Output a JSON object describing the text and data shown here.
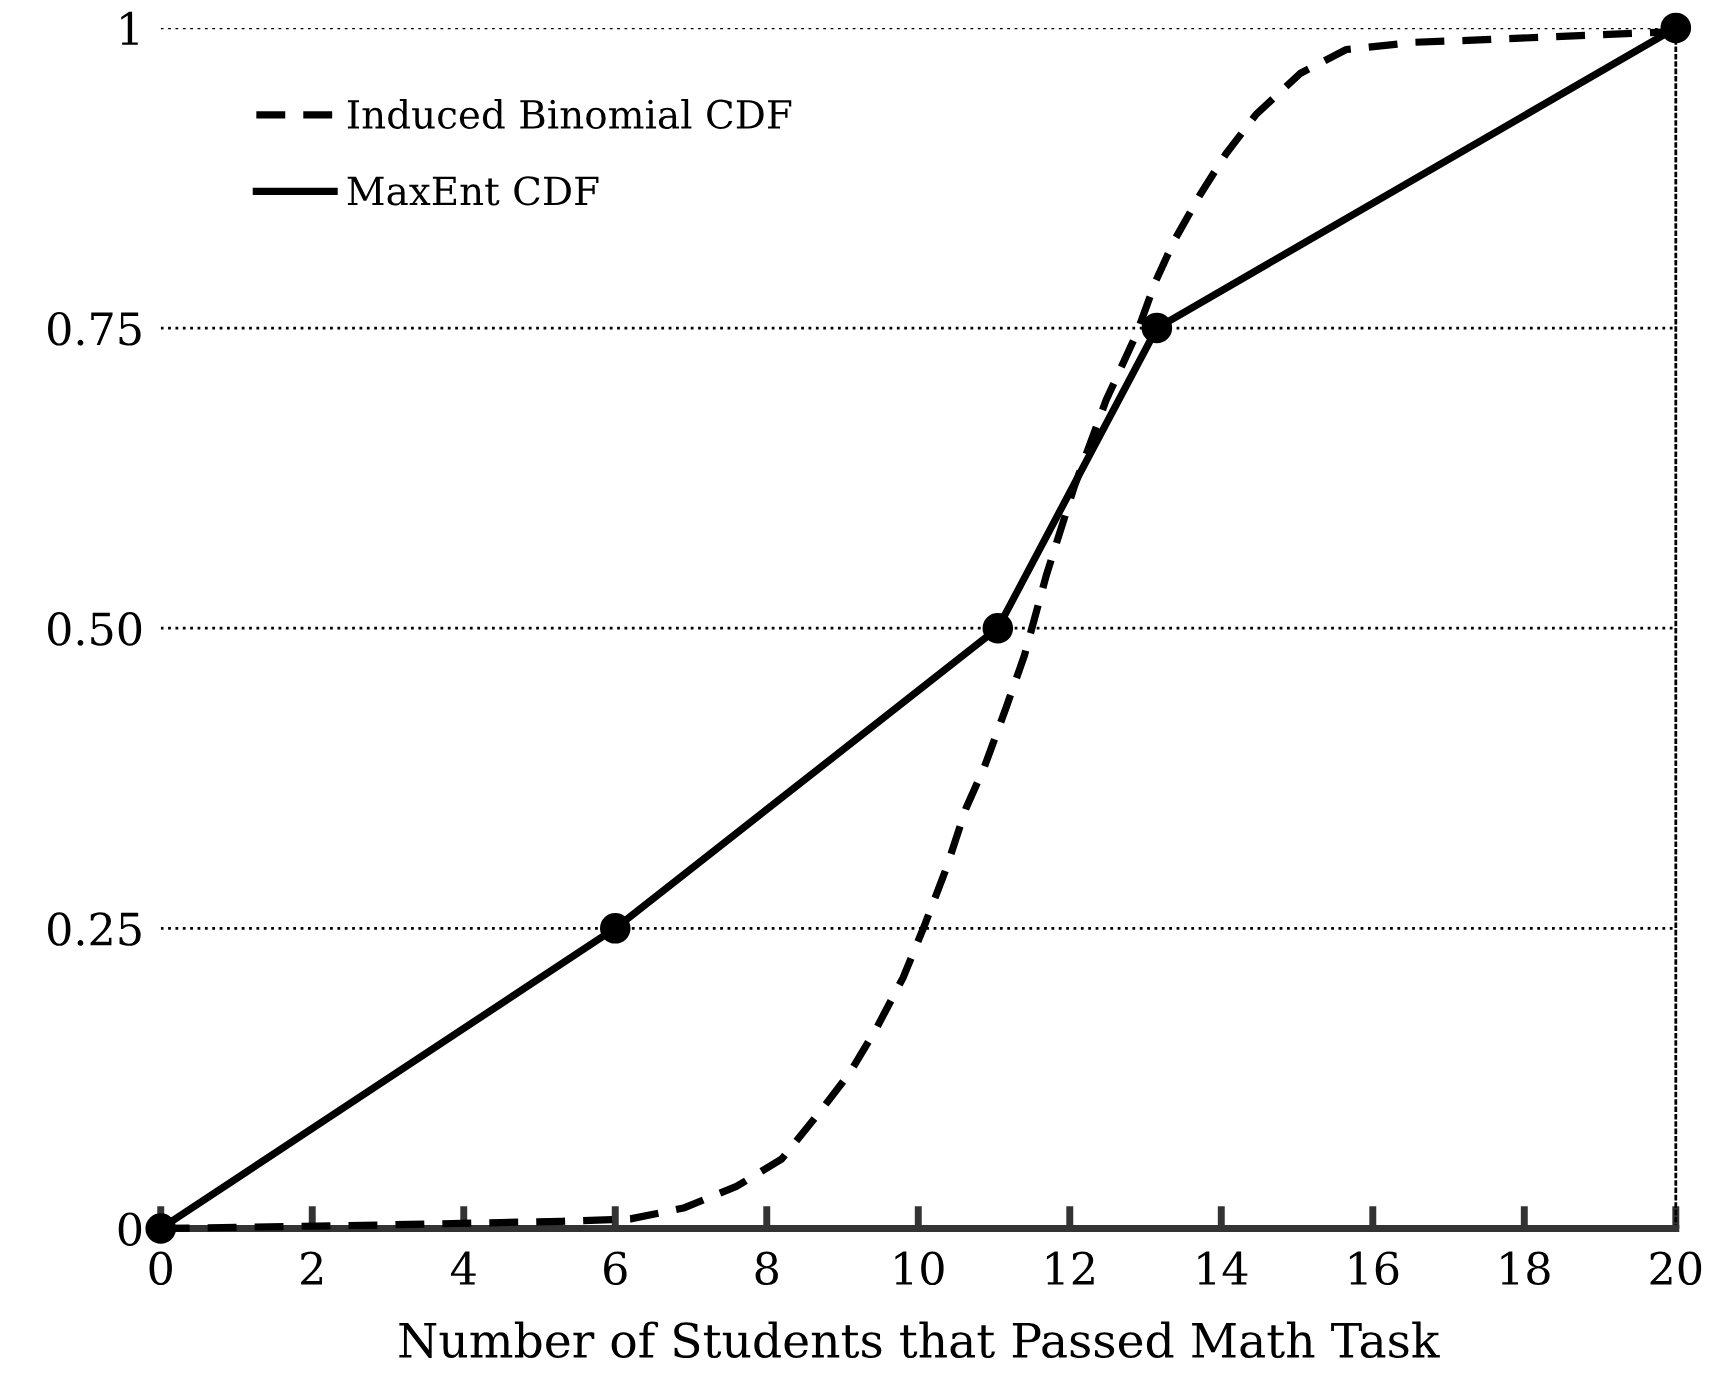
{
  "chart_data": {
    "type": "line",
    "xlabel": "Number of Students that Passed Math Task",
    "xlim": [
      0,
      20
    ],
    "xticks": [
      0,
      2,
      4,
      6,
      8,
      10,
      12,
      14,
      16,
      18,
      20
    ],
    "ylim": [
      0,
      1
    ],
    "yticks": [
      0,
      0.25,
      {
        "value": 0.5,
        "label": "0.50"
      },
      0.75,
      1
    ],
    "grid": "y",
    "legend": "top left",
    "series": [
      {
        "name": "Induced Binomial CDF",
        "color": "#000000",
        "line_style": "dashed",
        "marker": "none",
        "x": [
          0,
          3,
          5.3,
          6.2,
          6.9,
          7.6,
          8.2,
          8.7,
          9.1,
          9.45,
          9.8,
          10.08,
          10.37,
          10.63,
          10.87,
          11.16,
          11.4,
          11.69,
          12.06,
          12.48,
          12.88,
          13.14,
          13.38,
          13.72,
          14.06,
          14.46,
          15.04,
          15.65,
          16.54,
          17.4,
          20
        ],
        "values": [
          0,
          0.003,
          0.006,
          0.008,
          0.017,
          0.035,
          0.058,
          0.097,
          0.13,
          0.167,
          0.209,
          0.252,
          0.3,
          0.35,
          0.384,
          0.434,
          0.477,
          0.544,
          0.618,
          0.69,
          0.745,
          0.79,
          0.823,
          0.861,
          0.895,
          0.928,
          0.962,
          0.982,
          0.988,
          0.99,
          0.997
        ]
      },
      {
        "name": "MaxEnt CDF",
        "color": "#000000",
        "line_style": "solid",
        "marker": "circle",
        "x": [
          0,
          6,
          11.05,
          13.15,
          20
        ],
        "values": [
          0,
          0.25,
          0.5,
          0.75,
          1
        ]
      }
    ]
  }
}
